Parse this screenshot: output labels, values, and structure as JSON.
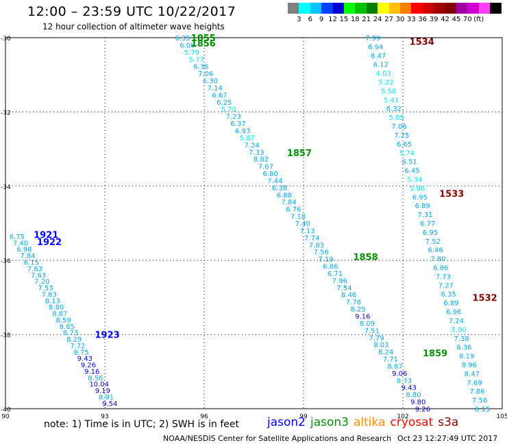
{
  "title": "12:00 – 23:59 UTC 10/22/2017",
  "subtitle": "12 hour collection of altimeter wave heights",
  "scale": {
    "colors": [
      "#808080",
      "#00ffff",
      "#00c0ff",
      "#0040ff",
      "#0000d0",
      "#00ff00",
      "#00c000",
      "#008000",
      "#ffff00",
      "#ffc000",
      "#ff8000",
      "#ff0000",
      "#d00000",
      "#a00000",
      "#800000",
      "#a000a0",
      "#d000d0",
      "#ff40ff",
      "#000000"
    ],
    "labels": [
      "3",
      "6",
      "9",
      "12",
      "15",
      "18",
      "21",
      "24",
      "27",
      "30",
      "33",
      "36",
      "39",
      "42",
      "45",
      "70",
      "(ft)"
    ]
  },
  "note": "note:  1) Time is in UTC;  2) SWH is in feet",
  "legend": [
    {
      "name": "jason2",
      "color": "#0000ff"
    },
    {
      "name": "jason3",
      "color": "#009000"
    },
    {
      "name": "altika",
      "color": "#ff8c00"
    },
    {
      "name": "cryosat",
      "color": "#ff0000"
    },
    {
      "name": "s3a",
      "color": "#800000"
    }
  ],
  "credit": "NOAA/NESDIS Center for Satellite Applications and Research",
  "timestamp": "Oct 23 12:27:49 UTC 2017",
  "chart_data": {
    "type": "scatter",
    "xlim": [
      90,
      105
    ],
    "ylim": [
      -40,
      -30
    ],
    "xticks": [
      "90",
      "93",
      "96",
      "99",
      "102",
      "105"
    ],
    "yticks": [
      "-30",
      "-32",
      "-34",
      "-36",
      "-38",
      "-40"
    ],
    "grid": true,
    "tracks": [
      {
        "satellite": "jason3",
        "labels": [
          {
            "text": "1855",
            "x": 95.6,
            "y": -30.0
          },
          {
            "text": "1856",
            "x": 95.6,
            "y": -30.15
          },
          {
            "text": "1857",
            "x": 98.5,
            "y": -33.1
          },
          {
            "text": "1858",
            "x": 100.5,
            "y": -35.9
          },
          {
            "text": "1859",
            "x": 102.6,
            "y": -38.5
          }
        ],
        "x0": 95.35,
        "y0": -30.0,
        "x1": 102.6,
        "y1": -40.0,
        "values": [
          "6.35",
          "6.08",
          "5.79",
          "5.77",
          "6.36",
          "7.06",
          "6.30",
          "7.14",
          "6.67",
          "6.25",
          "5.70",
          "7.23",
          "6.37",
          "6.93",
          "5.87",
          "7.24",
          "7.33",
          "8.82",
          "7.67",
          "6.80",
          "7.44",
          "6.38",
          "6.88",
          "7.84",
          "6.76",
          "7.10",
          "7.40",
          "7.13",
          "7.74",
          "7.83",
          "7.56",
          "7.19",
          "6.86",
          "6.71",
          "7.96",
          "7.54",
          "8.46",
          "7.78",
          "8.25",
          "9.16",
          "8.09",
          "7.51",
          "7.79",
          "8.03",
          "8.24",
          "7.71",
          "8.87",
          "9.06",
          "8.73",
          "9.43",
          "8.80",
          "9.80",
          "9.26"
        ]
      },
      {
        "satellite": "s3a",
        "labels": [
          {
            "text": "1534",
            "x": 102.2,
            "y": -30.1
          },
          {
            "text": "1533",
            "x": 103.1,
            "y": -34.2
          },
          {
            "text": "1532",
            "x": 104.1,
            "y": -37.0
          }
        ],
        "x0": 101.1,
        "y0": -30.0,
        "x1": 104.4,
        "y1": -40.0,
        "values": [
          "7.99",
          "6.94",
          "8.47",
          "6.12",
          "4.03",
          "5.22",
          "5.58",
          "5.41",
          "6.32",
          "5.85",
          "7.06",
          "7.25",
          "6.65",
          "5.74",
          "6.51",
          "6.45",
          "5.34",
          "5.86",
          "6.95",
          "6.89",
          "7.31",
          "6.77",
          "6.95",
          "7.52",
          "6.46",
          "7.80",
          "6.86",
          "7.73",
          "7.27",
          "6.35",
          "6.89",
          "6.96",
          "7.24",
          "5.90",
          "7.38",
          "8.36",
          "8.19",
          "8.96",
          "8.47",
          "7.69",
          "7.86",
          "7.56",
          "8.15"
        ]
      },
      {
        "satellite": "jason2",
        "labels": [
          {
            "text": "1921",
            "x": 90.85,
            "y": -35.3
          },
          {
            "text": "1922",
            "x": 90.95,
            "y": -35.5
          },
          {
            "text": "1923",
            "x": 92.7,
            "y": -38.0
          }
        ],
        "x0": 90.35,
        "y0": -35.35,
        "x1": 93.15,
        "y1": -39.85,
        "values": [
          "6.75",
          "7.40",
          "6.98",
          "7.84",
          "8.15",
          "7.63",
          "7.63",
          "7.20",
          "7.53",
          "7.83",
          "8.13",
          "8.80",
          "8.87",
          "8.59",
          "8.85",
          "8.73",
          "8.29",
          "7.72",
          "8.75",
          "9.43",
          "9.26",
          "9.16",
          "8.56",
          "10.04",
          "9.19",
          "8.91",
          "9.54"
        ]
      }
    ]
  }
}
